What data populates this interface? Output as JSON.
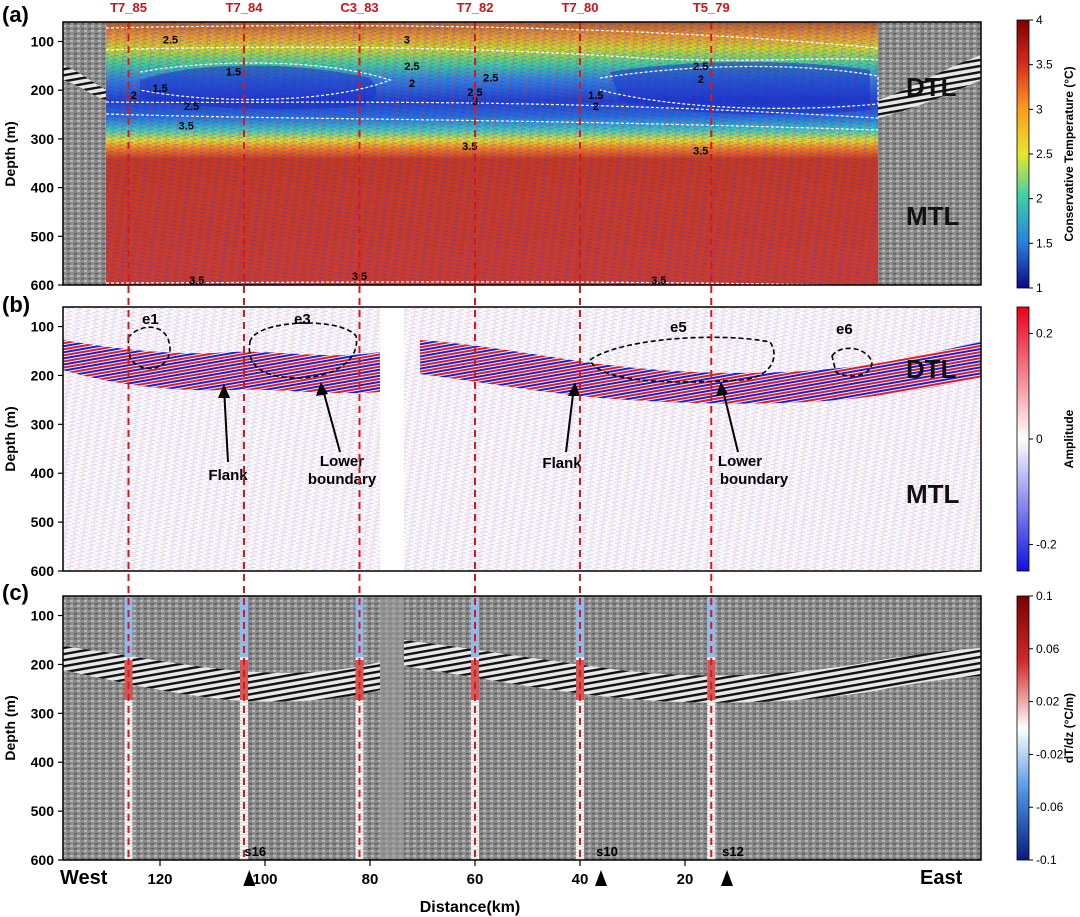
{
  "chart_data": {
    "type": "heatmap",
    "xlabel": "Distance(km)",
    "x_direction": "decreasing",
    "x_ticks": [
      120,
      100,
      80,
      60,
      40,
      20
    ],
    "x_end_labels": {
      "left": "West",
      "right": "East"
    },
    "y_ticks": [
      100,
      200,
      300,
      400,
      500,
      600
    ],
    "ylim": [
      60,
      600
    ],
    "profiles": [
      {
        "name": "T7_85",
        "km": 126
      },
      {
        "name": "T7_84",
        "km": 104
      },
      {
        "name": "C3_83",
        "km": 82
      },
      {
        "name": "T7_82",
        "km": 60
      },
      {
        "name": "T7_80",
        "km": 40
      },
      {
        "name": "T5_79",
        "km": 15
      }
    ],
    "stations": [
      {
        "name": "s16",
        "km": 103
      },
      {
        "name": "s10",
        "km": 36
      },
      {
        "name": "s12",
        "km": 12
      }
    ],
    "panels": [
      {
        "label": "(a)",
        "ylabel": "Depth (m)",
        "layers": [
          "DTL",
          "MTL"
        ],
        "colorbar": {
          "title": "Conservative Temperature (°C)",
          "ticks": [
            "4",
            "3.5",
            "3",
            "2.5",
            "2",
            "1.5",
            "1"
          ],
          "range": [
            1,
            4
          ]
        },
        "contour_labels": [
          {
            "text": "2.5",
            "km": 118,
            "depth": 96
          },
          {
            "text": "3",
            "km": 73,
            "depth": 96
          },
          {
            "text": "2.5",
            "km": 17,
            "depth": 150
          },
          {
            "text": "2",
            "km": 17,
            "depth": 177
          },
          {
            "text": "1.5",
            "km": 106,
            "depth": 162
          },
          {
            "text": "1.5",
            "km": 120,
            "depth": 196
          },
          {
            "text": "2",
            "km": 125,
            "depth": 210
          },
          {
            "text": "2.5",
            "km": 72,
            "depth": 150
          },
          {
            "text": "2",
            "km": 72,
            "depth": 185
          },
          {
            "text": "2.5",
            "km": 57,
            "depth": 174
          },
          {
            "text": "2.5",
            "km": 60,
            "depth": 204
          },
          {
            "text": "3",
            "km": 60,
            "depth": 222
          },
          {
            "text": "1.5",
            "km": 37,
            "depth": 210
          },
          {
            "text": "2",
            "km": 37,
            "depth": 232
          },
          {
            "text": "2.5",
            "km": 114,
            "depth": 232
          },
          {
            "text": "3.5",
            "km": 115,
            "depth": 272
          },
          {
            "text": "3.5",
            "km": 61,
            "depth": 315
          },
          {
            "text": "3.5",
            "km": 17,
            "depth": 324
          },
          {
            "text": "3.5",
            "km": 113,
            "depth": 590
          },
          {
            "text": "3.5",
            "km": 82,
            "depth": 582
          },
          {
            "text": "3.5",
            "km": 25,
            "depth": 590
          }
        ]
      },
      {
        "label": "(b)",
        "ylabel": "Depth (m)",
        "layers": [
          "DTL",
          "MTL"
        ],
        "colorbar": {
          "title": "Amplitude",
          "ticks": [
            "0.2",
            "0",
            "-0.2"
          ],
          "range": [
            -0.25,
            0.25
          ]
        },
        "eddies": [
          "e1",
          "e3",
          "e5",
          "e6"
        ],
        "annotations": [
          "Flank",
          "Lower",
          "boundary",
          "Flank",
          "Lower",
          "boundary"
        ]
      },
      {
        "label": "(c)",
        "ylabel": "Depth (m)",
        "colorbar": {
          "title": "dT/dz (°C/m)",
          "ticks": [
            "0.1",
            "0.06",
            "0.02",
            "-0.02",
            "-0.06",
            "-0.1"
          ],
          "range": [
            -0.1,
            0.1
          ]
        }
      }
    ]
  }
}
